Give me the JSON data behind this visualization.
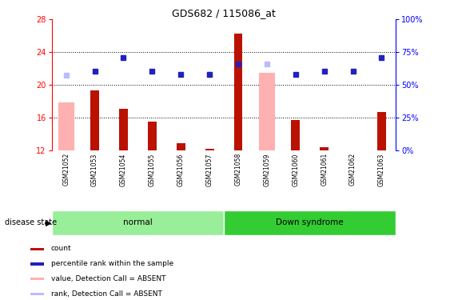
{
  "title": "GDS682 / 115086_at",
  "samples": [
    "GSM21052",
    "GSM21053",
    "GSM21054",
    "GSM21055",
    "GSM21056",
    "GSM21057",
    "GSM21058",
    "GSM21059",
    "GSM21060",
    "GSM21061",
    "GSM21062",
    "GSM21063"
  ],
  "count_values": [
    null,
    19.3,
    17.1,
    15.5,
    12.8,
    12.1,
    26.3,
    null,
    15.7,
    12.3,
    null,
    16.7
  ],
  "absent_value_bars": [
    17.8,
    null,
    null,
    null,
    null,
    null,
    null,
    21.5,
    null,
    null,
    null,
    null
  ],
  "rank_blue_dots": [
    null,
    21.7,
    23.3,
    21.7,
    21.3,
    21.3,
    22.5,
    null,
    21.3,
    21.7,
    21.7,
    23.3
  ],
  "rank_absent_dots": [
    21.2,
    null,
    null,
    null,
    null,
    21.3,
    null,
    22.5,
    null,
    null,
    null,
    null
  ],
  "ylim_left": [
    12,
    28
  ],
  "ylim_right": [
    0,
    100
  ],
  "yticks_left": [
    12,
    16,
    20,
    24,
    28
  ],
  "yticks_right": [
    0,
    25,
    50,
    75,
    100
  ],
  "yticklabels_right": [
    "0%",
    "25%",
    "50%",
    "75%",
    "100%"
  ],
  "color_count": "#BB1100",
  "color_absent_bar": "#FFB0B0",
  "color_rank_blue": "#2222BB",
  "color_rank_absent": "#BBBBFF",
  "color_normal_bg": "#99EE99",
  "color_down_bg": "#33CC33",
  "color_xlabel_bg": "#CCCCCC",
  "normal_label": "normal",
  "down_label": "Down syndrome",
  "disease_state_label": "disease state",
  "legend_items": [
    {
      "label": "count",
      "color": "#BB1100"
    },
    {
      "label": "percentile rank within the sample",
      "color": "#2222BB"
    },
    {
      "label": "value, Detection Call = ABSENT",
      "color": "#FFB0B0"
    },
    {
      "label": "rank, Detection Call = ABSENT",
      "color": "#BBBBFF"
    }
  ]
}
